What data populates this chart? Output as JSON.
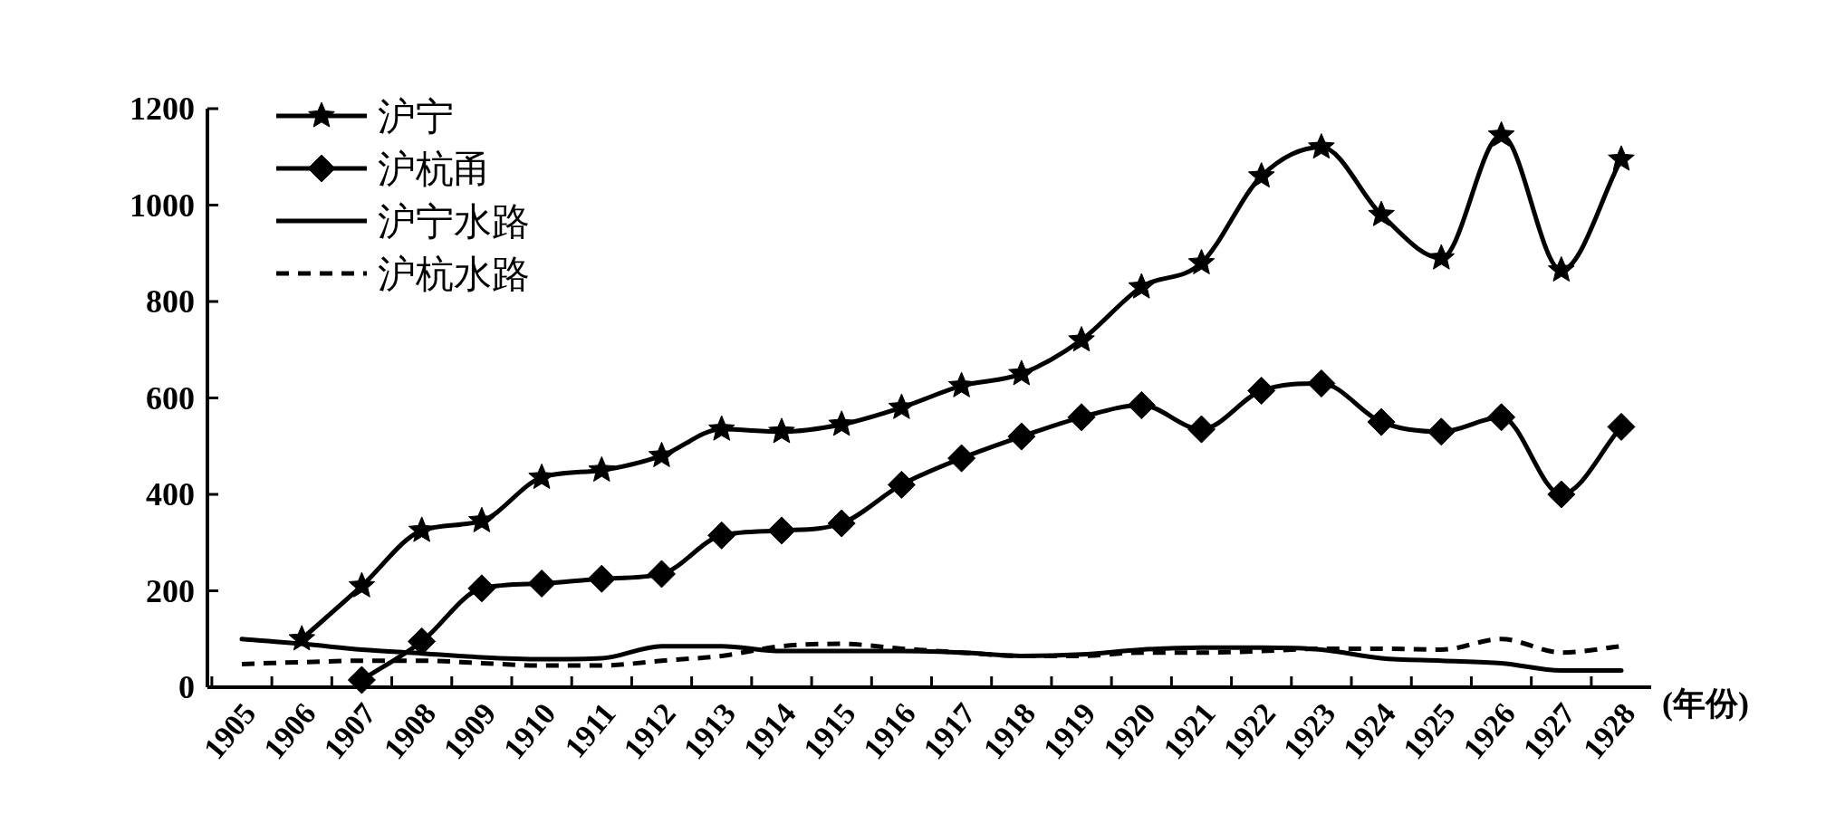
{
  "chart_data": {
    "type": "line",
    "xlabel": "(年份)",
    "legend": "top left",
    "categories": [
      "1905",
      "1906",
      "1907",
      "1908",
      "1909",
      "1910",
      "1911",
      "1912",
      "1913",
      "1914",
      "1915",
      "1916",
      "1917",
      "1918",
      "1919",
      "1920",
      "1921",
      "1922",
      "1923",
      "1924",
      "1925",
      "1926",
      "1927",
      "1928"
    ],
    "ylim": [
      0,
      1200
    ],
    "yticks": [
      0,
      200,
      400,
      600,
      800,
      1000,
      1200
    ],
    "series": [
      {
        "name": "沪宁",
        "color": "#000000",
        "marker": "star",
        "line_style": "solid",
        "values": [
          null,
          100,
          210,
          325,
          345,
          435,
          450,
          480,
          535,
          530,
          545,
          580,
          625,
          650,
          720,
          830,
          880,
          1060,
          1120,
          980,
          890,
          1145,
          865,
          1095
        ]
      },
      {
        "name": "沪杭甬",
        "color": "#000000",
        "marker": "diamond",
        "line_style": "solid",
        "values": [
          null,
          null,
          15,
          95,
          205,
          215,
          225,
          235,
          315,
          325,
          340,
          420,
          475,
          520,
          560,
          585,
          535,
          615,
          630,
          550,
          530,
          560,
          400,
          540
        ]
      },
      {
        "name": "沪宁水路",
        "color": "#000000",
        "marker": "none",
        "line_style": "solid",
        "values": [
          100,
          90,
          78,
          70,
          62,
          58,
          60,
          85,
          85,
          75,
          75,
          75,
          72,
          65,
          68,
          78,
          82,
          82,
          78,
          60,
          55,
          50,
          35,
          35
        ]
      },
      {
        "name": "沪杭水路",
        "color": "#000000",
        "marker": "none",
        "line_style": "dashed",
        "values": [
          48,
          52,
          55,
          55,
          50,
          45,
          45,
          55,
          65,
          85,
          90,
          80,
          72,
          65,
          65,
          72,
          72,
          75,
          80,
          80,
          78,
          100,
          72,
          85
        ]
      }
    ]
  }
}
